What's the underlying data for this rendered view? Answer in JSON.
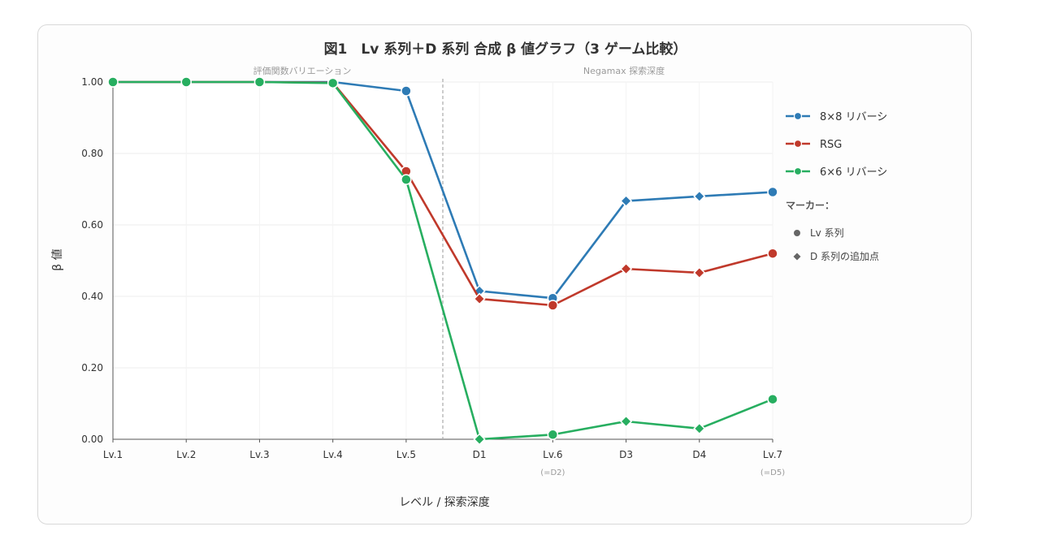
{
  "chart_data": {
    "type": "line",
    "title": "図1　Lv 系列＋D 系列 合成 β 値グラフ（3 ゲーム比較）",
    "xlabel": "レベル / 探索深度",
    "ylabel": "β 値",
    "ylim": [
      0,
      1.0
    ],
    "yticks": [
      "0.00",
      "0.20",
      "0.40",
      "0.60",
      "0.80",
      "1.00"
    ],
    "categories": [
      "Lv.1",
      "Lv.2",
      "Lv.3",
      "Lv.4",
      "Lv.5",
      "D1",
      "Lv.6",
      "D3",
      "D4",
      "Lv.7"
    ],
    "category_sublabels": [
      "",
      "",
      "",
      "",
      "",
      "",
      "(=D2)",
      "",
      "",
      "(=D5)"
    ],
    "marker_shapes": [
      "circle",
      "circle",
      "circle",
      "circle",
      "circle",
      "diamond",
      "circle",
      "diamond",
      "diamond",
      "circle"
    ],
    "regions": [
      {
        "label": "評価関数バリエーション"
      },
      {
        "label": "Negamax 探索深度"
      }
    ],
    "grid": true,
    "legend_position": "right",
    "series": [
      {
        "name": "8×8 リバーシ",
        "color": "#2e7bb5",
        "values": [
          1.0,
          1.0,
          1.0,
          1.0,
          0.975,
          0.415,
          0.395,
          0.667,
          0.68,
          0.692
        ]
      },
      {
        "name": "RSG",
        "color": "#c0392b",
        "values": [
          1.0,
          1.0,
          1.0,
          0.998,
          0.75,
          0.393,
          0.375,
          0.477,
          0.466,
          0.52
        ]
      },
      {
        "name": "6×6 リバーシ",
        "color": "#27ae60",
        "values": [
          1.0,
          1.0,
          1.0,
          0.997,
          0.727,
          0.0,
          0.013,
          0.05,
          0.03,
          0.112
        ]
      }
    ],
    "marker_legend": {
      "title": "マーカー：",
      "items": [
        {
          "shape": "circle",
          "label": "Lv 系列"
        },
        {
          "shape": "diamond",
          "label": "D 系列の追加点"
        }
      ]
    }
  }
}
